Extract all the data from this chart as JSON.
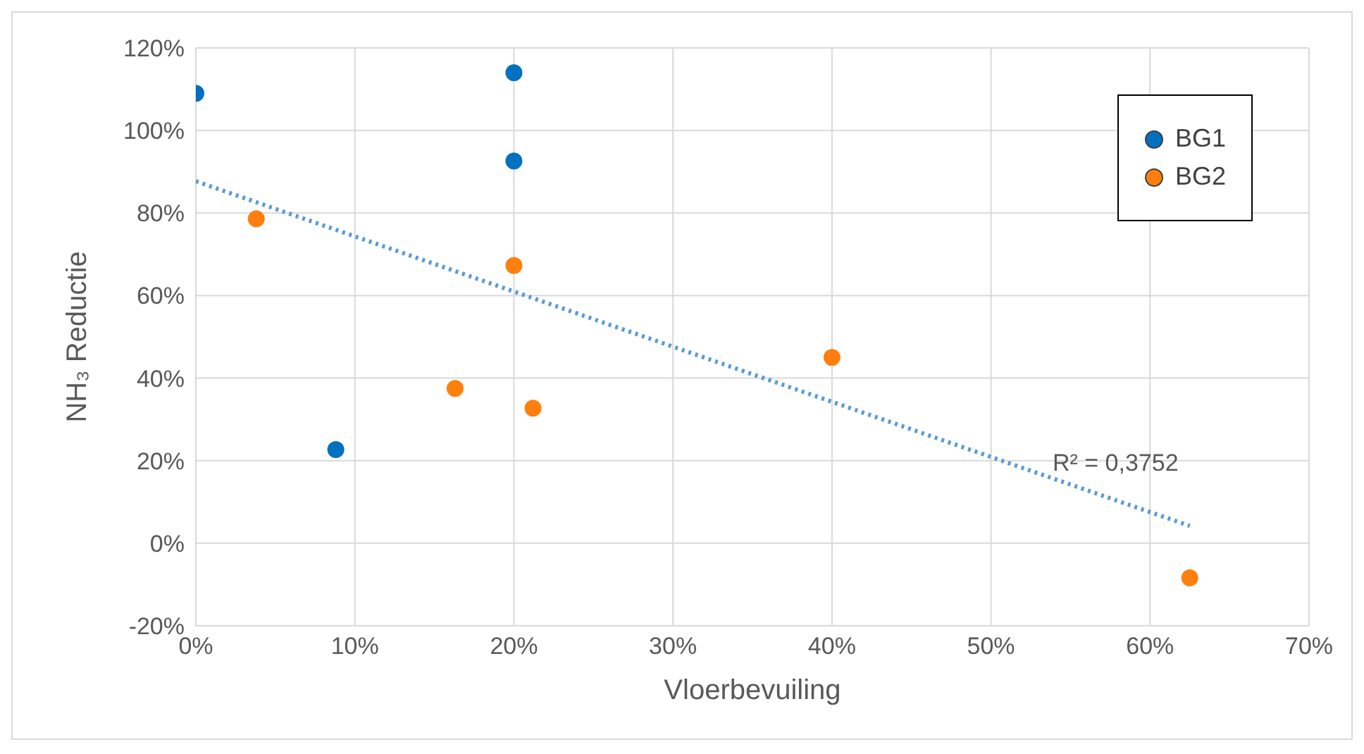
{
  "chart_data": {
    "type": "scatter",
    "xlabel": "Vloerbevuiling",
    "ylabel": "NH₃ Reductie",
    "series": [
      {
        "name": "BG1",
        "color": "#0070c0",
        "x": [
          0,
          8.8,
          20,
          20
        ],
        "values": [
          109,
          22.7,
          114,
          92.6
        ]
      },
      {
        "name": "BG2",
        "color": "#ff7f0e",
        "x": [
          3.8,
          20,
          16.3,
          21.2,
          40,
          62.5
        ],
        "values": [
          78.6,
          67.3,
          37.5,
          32.7,
          45,
          -8.4
        ]
      },
      {
        "type": "line",
        "color": "#5b9bd5",
        "line_style": "dotted",
        "marker": "none",
        "x": [
          0,
          62.5
        ],
        "values": [
          87.7,
          4.2
        ]
      }
    ],
    "xlim": [
      0,
      70
    ],
    "xticks": [
      {
        "value": 0,
        "label": "0%"
      },
      {
        "value": 10,
        "label": "10%"
      },
      {
        "value": 20,
        "label": "20%"
      },
      {
        "value": 30,
        "label": "30%"
      },
      {
        "value": 40,
        "label": "40%"
      },
      {
        "value": 50,
        "label": "50%"
      },
      {
        "value": 60,
        "label": "60%"
      },
      {
        "value": 70,
        "label": "70%"
      }
    ],
    "ylim": [
      -20,
      120
    ],
    "yticks": [
      {
        "value": -20,
        "label": "-20%"
      },
      {
        "value": 0,
        "label": "0%"
      },
      {
        "value": 20,
        "label": "20%"
      },
      {
        "value": 40,
        "label": "40%"
      },
      {
        "value": 60,
        "label": "60%"
      },
      {
        "value": 80,
        "label": "80%"
      },
      {
        "value": 100,
        "label": "100%"
      },
      {
        "value": 120,
        "label": "120%"
      }
    ],
    "annotations": [
      "R² = 0,3752"
    ],
    "grid": true,
    "legend": "top right",
    "marker": "circle"
  }
}
